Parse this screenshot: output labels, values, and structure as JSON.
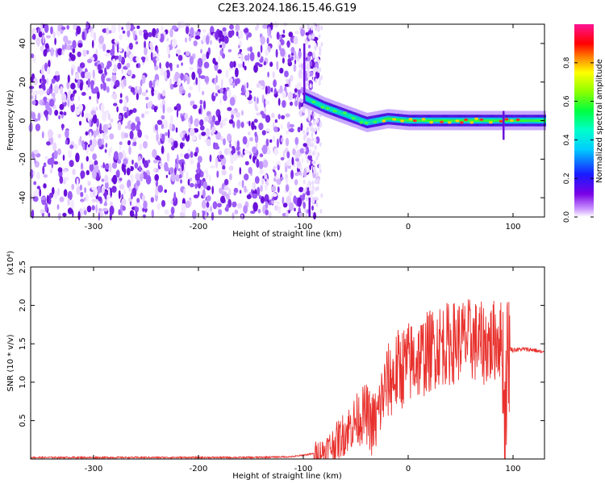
{
  "title": "C2E3.2024.186.15.46.G19",
  "colors": {
    "snr_line": "#e8312d",
    "axis": "#000000",
    "background": "#ffffff"
  },
  "chart_data": [
    {
      "type": "heatmap",
      "title": "C2E3.2024.186.15.46.G19",
      "xlabel": "Height of straight line (km)",
      "ylabel": "Frequency (Hz)",
      "xlim": [
        -360,
        130
      ],
      "ylim": [
        -50,
        50
      ],
      "xticks": [
        -300,
        -200,
        -100,
        0,
        100
      ],
      "yticks": [
        -40,
        -20,
        0,
        20,
        40
      ],
      "colorbar": {
        "label": "Normalized spectral amplitude",
        "range": [
          0,
          1
        ],
        "ticks": [
          "0.0",
          "0.2",
          "0.4",
          "0.6",
          "0.8"
        ],
        "colormap": "rainbow (white-violet-blue-cyan-green-yellow-red-magenta)"
      },
      "features": {
        "noise_region": {
          "x_range": [
            -360,
            -85
          ],
          "freq_range": [
            -50,
            50
          ],
          "amplitude": "low (0.0-0.2), scattered"
        },
        "signal_band": {
          "x_range": [
            -100,
            130
          ],
          "center_freq": [
            {
              "x": -100,
              "y": 12
            },
            {
              "x": -80,
              "y": 7
            },
            {
              "x": -60,
              "y": 3
            },
            {
              "x": -40,
              "y": -1
            },
            {
              "x": -20,
              "y": 1
            },
            {
              "x": 0,
              "y": 0
            },
            {
              "x": 50,
              "y": 0
            },
            {
              "x": 130,
              "y": 0
            }
          ],
          "amplitude": "0.4-0.9 (green to red), increasing toward x > -20"
        }
      }
    },
    {
      "type": "line",
      "xlabel": "Height of straight line (km)",
      "ylabel": "SNR (10 * v/v)",
      "y_multiplier": "(x10⁴)",
      "xlim": [
        -360,
        130
      ],
      "ylim": [
        0,
        2.5
      ],
      "xticks": [
        -300,
        -200,
        -100,
        0,
        100
      ],
      "yticks": [
        "0.5",
        "1.0",
        "1.5",
        "2.0",
        "2.5"
      ],
      "series": [
        {
          "x": [
            -360,
            -300,
            -250,
            -200,
            -150,
            -110,
            -90,
            -80,
            -70,
            -60,
            -50,
            -40,
            -35,
            -30,
            -25,
            -20,
            -15,
            -10,
            -5,
            0,
            10,
            20,
            30,
            40,
            50,
            60,
            70,
            80,
            85,
            90,
            92,
            95,
            100,
            110,
            120,
            130
          ],
          "y": [
            0.02,
            0.02,
            0.02,
            0.02,
            0.02,
            0.03,
            0.07,
            0.1,
            0.2,
            0.35,
            0.5,
            0.6,
            0.45,
            0.5,
            0.8,
            1.0,
            1.05,
            1.15,
            1.2,
            1.25,
            1.3,
            1.4,
            1.5,
            1.5,
            1.55,
            1.55,
            1.5,
            1.5,
            1.6,
            1.5,
            0.5,
            1.45,
            1.42,
            1.43,
            1.42,
            1.38
          ]
        }
      ]
    }
  ]
}
